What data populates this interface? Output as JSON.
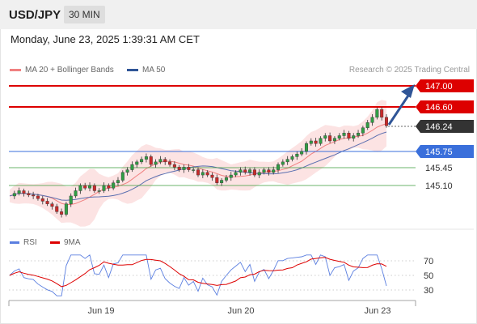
{
  "header": {
    "pair": "USD/JPY",
    "timeframe": "30 MIN"
  },
  "datetime": "Monday, June 23, 2025 1:39:31 AM CET",
  "legend": [
    {
      "label": "MA 20 + Bollinger Bands",
      "color": "#f08080"
    },
    {
      "label": "MA 50",
      "color": "#2f5597"
    }
  ],
  "research": "Research © 2025 Trading Central",
  "price_levels": [
    {
      "label": "147.00",
      "color": "#dd0000"
    },
    {
      "label": "146.60",
      "color": "#dd0000"
    },
    {
      "label": "146.24",
      "color": "#333333"
    },
    {
      "label": "145.75",
      "color": "#3a6fdb"
    },
    {
      "label": "145.45",
      "color": "#3a9d3a"
    },
    {
      "label": "145.10",
      "color": "#3a9d3a"
    }
  ],
  "rsi_legend": [
    {
      "label": "RSI",
      "color": "#5b7fe0"
    },
    {
      "label": "9MA",
      "color": "#dd0000"
    }
  ],
  "rsi_levels": [
    "70",
    "50",
    "30"
  ],
  "x_labels": [
    "Jun 19",
    "Jun 20",
    "Jun 23"
  ],
  "chart_data": {
    "type": "candlestick",
    "instrument": "USD/JPY",
    "timeframe": "30 MIN",
    "current_price": 146.24,
    "support": [
      145.75,
      145.45,
      145.1
    ],
    "resistance": [
      146.6,
      147.0
    ],
    "closes": [
      144.9,
      144.95,
      145.0,
      144.95,
      144.92,
      144.9,
      144.85,
      144.8,
      144.75,
      144.7,
      144.6,
      144.55,
      144.75,
      144.9,
      145.0,
      145.1,
      145.05,
      145.1,
      145.0,
      145.0,
      145.1,
      145.05,
      145.15,
      145.2,
      145.35,
      145.4,
      145.5,
      145.55,
      145.6,
      145.65,
      145.5,
      145.55,
      145.6,
      145.55,
      145.5,
      145.45,
      145.4,
      145.45,
      145.4,
      145.4,
      145.3,
      145.35,
      145.3,
      145.25,
      145.15,
      145.2,
      145.25,
      145.3,
      145.35,
      145.4,
      145.35,
      145.4,
      145.3,
      145.35,
      145.4,
      145.35,
      145.4,
      145.5,
      145.55,
      145.6,
      145.65,
      145.7,
      145.75,
      145.9,
      145.95,
      145.9,
      146.0,
      146.05,
      145.95,
      146.0,
      146.05,
      146.1,
      146.0,
      146.05,
      146.1,
      146.2,
      146.3,
      146.4,
      146.55,
      146.4,
      146.24
    ],
    "rsi_levels": [
      70,
      50,
      30
    ]
  }
}
